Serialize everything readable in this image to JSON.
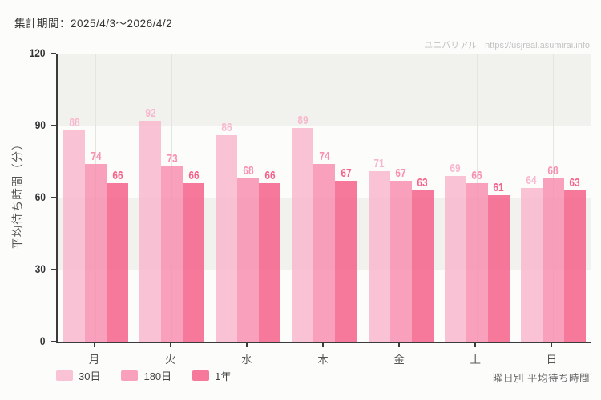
{
  "header": {
    "period_label": "集計期間：2025/4/3〜2026/4/2"
  },
  "watermark": {
    "brand": "ユニバリアル",
    "url": "https://usjreal.asumirai.info"
  },
  "footer": {
    "caption": "曜日別 平均待ち時間"
  },
  "colors": {
    "background": "#fcfdfb",
    "band": "#f1f2ee",
    "grid": "#e4e5e1",
    "axis": "#3b3b3b",
    "bar_opacity": 0.85
  },
  "chart_data": {
    "type": "bar",
    "title": "曜日別 平均待ち時間",
    "ylabel": "平均待ち時間（分）",
    "categories": [
      "月",
      "火",
      "水",
      "木",
      "金",
      "土",
      "日"
    ],
    "series": [
      {
        "name": "30日",
        "color": "#f8b7ce",
        "values": [
          88,
          92,
          86,
          89,
          71,
          69,
          64
        ]
      },
      {
        "name": "180日",
        "color": "#f890b0",
        "values": [
          74,
          73,
          68,
          74,
          67,
          66,
          68
        ]
      },
      {
        "name": "1年",
        "color": "#f5628a",
        "values": [
          66,
          66,
          66,
          67,
          63,
          61,
          63
        ]
      }
    ],
    "yticks": [
      0,
      30,
      60,
      90,
      120
    ],
    "ylim": [
      0,
      120
    ],
    "grid": true,
    "legend_position": "bottom-left"
  }
}
